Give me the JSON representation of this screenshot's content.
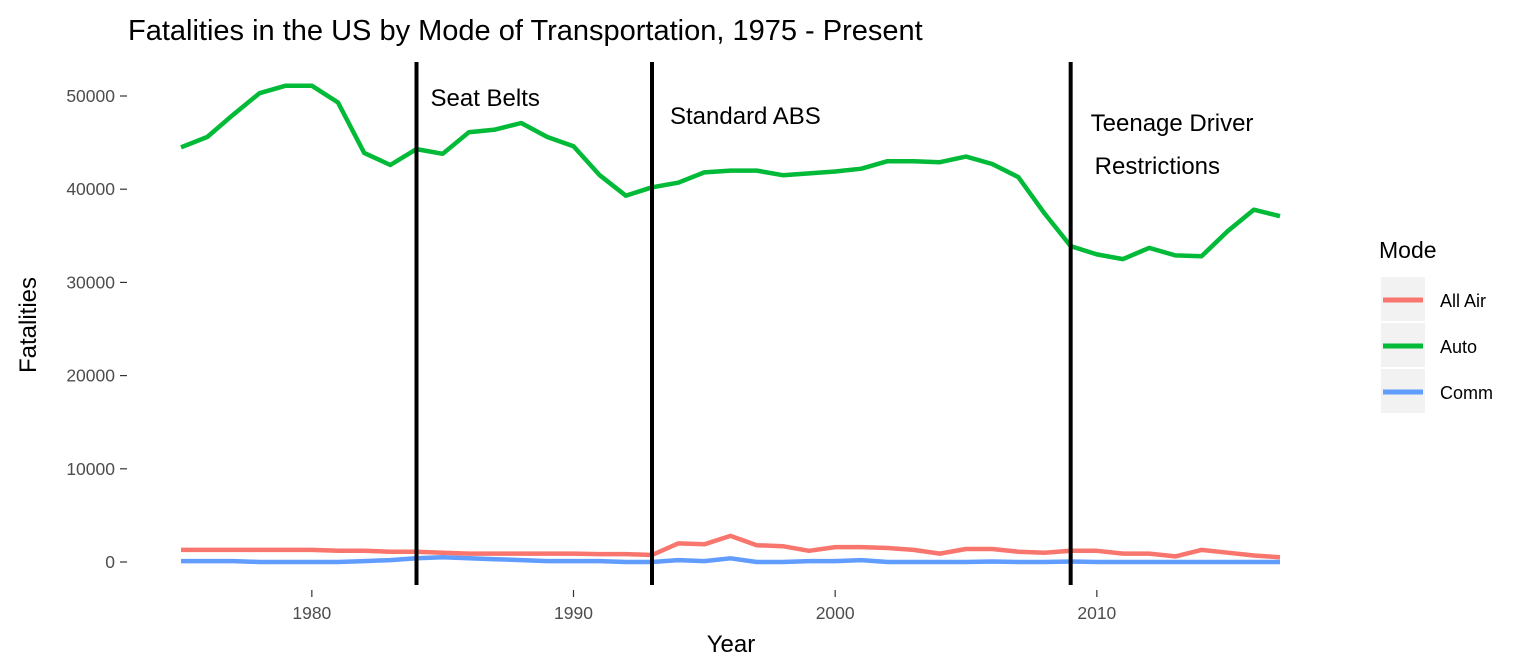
{
  "chart_data": {
    "type": "line",
    "title": "Fatalities in the US by Mode of Transportation, 1975 - Present",
    "xlabel": "Year",
    "ylabel": "Fatalities",
    "xlim": [
      1975,
      2017
    ],
    "ylim": [
      -2500,
      54000
    ],
    "x_ticks": [
      1980,
      1990,
      2000,
      2010
    ],
    "y_ticks": [
      0,
      10000,
      20000,
      30000,
      40000,
      50000
    ],
    "x_tick_labels": [
      "1980",
      "1990",
      "2000",
      "2010"
    ],
    "y_tick_labels": [
      "0",
      "10000",
      "20000",
      "30000",
      "40000",
      "50000"
    ],
    "grid": false,
    "legend": {
      "title": "Mode",
      "position": "right"
    },
    "x": [
      1975,
      1976,
      1977,
      1978,
      1979,
      1980,
      1981,
      1982,
      1983,
      1984,
      1985,
      1986,
      1987,
      1988,
      1989,
      1990,
      1991,
      1992,
      1993,
      1994,
      1995,
      1996,
      1997,
      1998,
      1999,
      2000,
      2001,
      2002,
      2003,
      2004,
      2005,
      2006,
      2007,
      2008,
      2009,
      2010,
      2011,
      2012,
      2013,
      2014,
      2015,
      2016,
      2017
    ],
    "series": [
      {
        "name": "All Air",
        "color": "#F8766D",
        "values": [
          1300,
          1300,
          1300,
          1300,
          1300,
          1300,
          1200,
          1200,
          1100,
          1100,
          1000,
          900,
          900,
          900,
          900,
          900,
          850,
          850,
          750,
          2000,
          1900,
          2800,
          1800,
          1700,
          1200,
          1600,
          1600,
          1500,
          1300,
          900,
          1400,
          1400,
          1100,
          1000,
          1200,
          1200,
          900,
          900,
          600,
          1300,
          1000,
          700,
          500
        ]
      },
      {
        "name": "Auto",
        "color": "#00BA38",
        "values": [
          44500,
          45600,
          48000,
          50300,
          51100,
          51100,
          49300,
          43900,
          42600,
          44300,
          43800,
          46100,
          46400,
          47100,
          45600,
          44600,
          41500,
          39300,
          40200,
          40700,
          41800,
          42000,
          42000,
          41500,
          41700,
          41900,
          42200,
          43000,
          43000,
          42900,
          43500,
          42700,
          41300,
          37400,
          33900,
          33000,
          32500,
          33700,
          32900,
          32800,
          35500,
          37800,
          37100
        ]
      },
      {
        "name": "Comm",
        "color": "#619CFF",
        "values": [
          100,
          100,
          100,
          0,
          0,
          0,
          0,
          100,
          200,
          400,
          500,
          400,
          300,
          200,
          100,
          100,
          100,
          0,
          0,
          200,
          100,
          400,
          0,
          0,
          100,
          100,
          200,
          0,
          0,
          0,
          0,
          50,
          0,
          0,
          50,
          0,
          0,
          0,
          0,
          0,
          0,
          0,
          0
        ]
      }
    ],
    "annotations": [
      {
        "x": 1984,
        "label_lines": [
          "Seat Belts"
        ]
      },
      {
        "x": 1993,
        "label_lines": [
          "Standard ABS"
        ]
      },
      {
        "x": 2009,
        "label_lines": [
          "Teenage Driver",
          "Restrictions"
        ]
      }
    ]
  }
}
